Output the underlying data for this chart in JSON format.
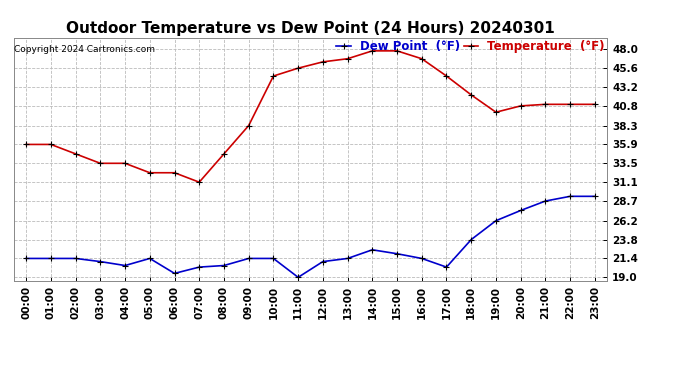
{
  "title": "Outdoor Temperature vs Dew Point (24 Hours) 20240301",
  "copyright": "Copyright 2024 Cartronics.com",
  "legend_dewpoint": "Dew Point  (°F)",
  "legend_temp": "Temperature  (°F)",
  "hours": [
    "00:00",
    "01:00",
    "02:00",
    "03:00",
    "04:00",
    "05:00",
    "06:00",
    "07:00",
    "08:00",
    "09:00",
    "10:00",
    "11:00",
    "12:00",
    "13:00",
    "14:00",
    "15:00",
    "16:00",
    "17:00",
    "18:00",
    "19:00",
    "20:00",
    "21:00",
    "22:00",
    "23:00"
  ],
  "temperature": [
    35.9,
    35.9,
    34.7,
    33.5,
    33.5,
    32.3,
    32.3,
    31.1,
    34.7,
    38.3,
    44.6,
    45.6,
    46.4,
    46.8,
    47.8,
    47.8,
    46.8,
    44.6,
    42.2,
    40.0,
    40.8,
    41.0,
    41.0,
    41.0
  ],
  "dewpoint": [
    21.4,
    21.4,
    21.4,
    21.0,
    20.5,
    21.4,
    19.5,
    20.3,
    20.5,
    21.4,
    21.4,
    19.0,
    21.0,
    21.4,
    22.5,
    22.0,
    21.4,
    20.3,
    23.8,
    26.2,
    27.5,
    28.7,
    29.3,
    29.3
  ],
  "temp_color": "#cc0000",
  "dew_color": "#0000cc",
  "background_color": "#ffffff",
  "grid_color": "#bbbbbb",
  "yticks": [
    19.0,
    21.4,
    23.8,
    26.2,
    28.7,
    31.1,
    33.5,
    35.9,
    38.3,
    40.8,
    43.2,
    45.6,
    48.0
  ],
  "ylim": [
    18.5,
    49.5
  ],
  "xlim": [
    -0.5,
    23.5
  ],
  "title_fontsize": 11,
  "tick_fontsize": 7.5,
  "legend_fontsize": 8.5,
  "marker": "+",
  "marker_size": 5,
  "linewidth": 1.2
}
